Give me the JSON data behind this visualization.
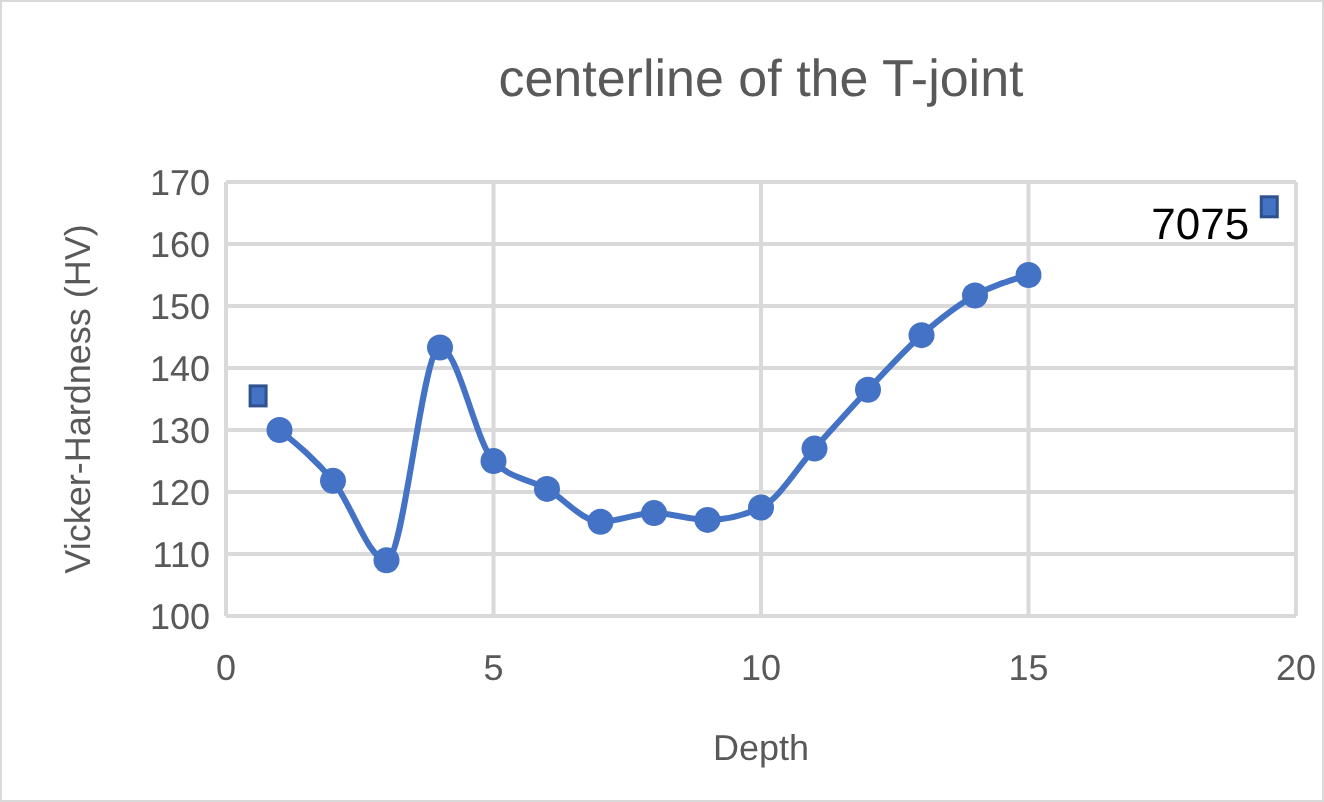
{
  "chart_data": {
    "type": "line",
    "title": "centerline of the T-joint",
    "xlabel": "Depth",
    "ylabel": "Vicker-Hardness (HV)",
    "xlim": [
      0,
      20
    ],
    "xticks": [
      0,
      5,
      10,
      15,
      20
    ],
    "ylim": [
      100,
      170
    ],
    "yticks": [
      100,
      110,
      120,
      130,
      140,
      150,
      160,
      170
    ],
    "grid": true,
    "marker": "circle",
    "line_style": "solid",
    "series": [
      {
        "color": "#4472c4",
        "x": [
          1,
          2,
          3,
          4,
          5,
          6,
          7,
          8,
          9,
          10,
          11,
          12,
          13,
          14,
          15
        ],
        "values": [
          130,
          121.8,
          109,
          143.3,
          125,
          120.5,
          115.2,
          116.6,
          115.5,
          117.5,
          127,
          136.5,
          145.3,
          151.7,
          155
        ]
      },
      {
        "type": "scatter",
        "marker": "square",
        "color": "#4472c4",
        "x": [
          0.6,
          19.5
        ],
        "values": [
          135.5,
          166
        ]
      }
    ],
    "annotations": [
      {
        "text": "7075",
        "x": 19.5,
        "y": 166
      }
    ]
  }
}
